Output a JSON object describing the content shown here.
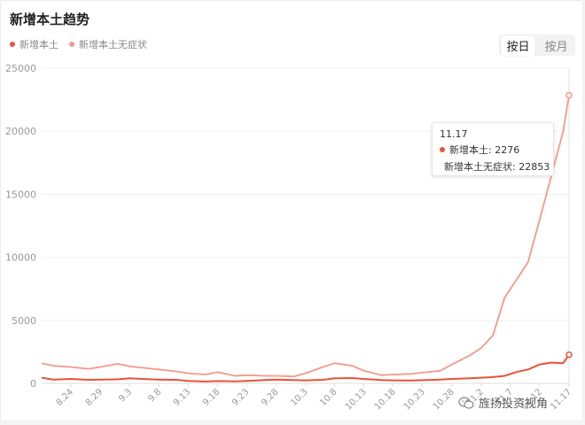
{
  "title": "新增本土趋势",
  "legend": [
    {
      "label": "新增本土",
      "color": "#e8533a"
    },
    {
      "label": "新增本土无症状",
      "color": "#f4998a"
    }
  ],
  "toggle": {
    "by_day": "按日",
    "by_month": "按月",
    "active": "by_day"
  },
  "tooltip": {
    "date": "11.17",
    "rows": [
      {
        "label": "新增本土: 2276",
        "color": "#e8533a"
      },
      {
        "label": "新增本土无症状: 22853",
        "color": "#f4998a"
      }
    ]
  },
  "watermark": {
    "text": "旌扬投资视角",
    "icon": "wechat-icon"
  },
  "chart_data": {
    "type": "line",
    "x_tick_labels": [
      "8.24",
      "8.29",
      "9.3",
      "9.8",
      "9.13",
      "9.18",
      "9.23",
      "9.28",
      "10.3",
      "10.8",
      "10.13",
      "10.18",
      "10.23",
      "10.28",
      "11.2",
      "11.7",
      "11.12",
      "11.17"
    ],
    "ylim": [
      0,
      25000
    ],
    "y_ticks": [
      0,
      5000,
      10000,
      15000,
      20000,
      25000
    ],
    "grid": true,
    "legend_position": "top-left",
    "series": [
      {
        "name": "新增本土",
        "color": "#e8533a",
        "x": [
          "8.19",
          "8.21",
          "8.24",
          "8.27",
          "8.29",
          "9.1",
          "9.3",
          "9.6",
          "9.8",
          "9.11",
          "9.13",
          "9.16",
          "9.18",
          "9.21",
          "9.23",
          "9.26",
          "9.28",
          "10.1",
          "10.3",
          "10.6",
          "10.8",
          "10.11",
          "10.13",
          "10.16",
          "10.18",
          "10.21",
          "10.23",
          "10.26",
          "10.28",
          "10.31",
          "11.2",
          "11.4",
          "11.6",
          "11.8",
          "11.10",
          "11.12",
          "11.14",
          "11.16",
          "11.17"
        ],
        "values": [
          450,
          300,
          350,
          280,
          300,
          320,
          400,
          330,
          300,
          280,
          200,
          150,
          180,
          160,
          200,
          260,
          300,
          260,
          240,
          280,
          400,
          420,
          350,
          260,
          240,
          230,
          250,
          300,
          350,
          400,
          450,
          500,
          600,
          900,
          1100,
          1500,
          1650,
          1600,
          2276
        ]
      },
      {
        "name": "新增本土无症状",
        "color": "#f4998a",
        "x": [
          "8.19",
          "8.21",
          "8.24",
          "8.27",
          "8.29",
          "9.1",
          "9.3",
          "9.6",
          "9.8",
          "9.11",
          "9.13",
          "9.16",
          "9.18",
          "9.21",
          "9.23",
          "9.26",
          "9.28",
          "10.1",
          "10.3",
          "10.6",
          "10.8",
          "10.11",
          "10.13",
          "10.16",
          "10.18",
          "10.21",
          "10.23",
          "10.26",
          "10.28",
          "10.31",
          "11.2",
          "11.4",
          "11.6",
          "11.8",
          "11.10",
          "11.12",
          "11.14",
          "11.16",
          "11.17"
        ],
        "values": [
          1600,
          1400,
          1300,
          1150,
          1300,
          1550,
          1350,
          1200,
          1100,
          950,
          800,
          700,
          900,
          600,
          650,
          600,
          600,
          550,
          800,
          1300,
          1600,
          1400,
          1000,
          650,
          700,
          750,
          850,
          1000,
          1500,
          2200,
          2800,
          3800,
          6800,
          8200,
          9600,
          13000,
          16500,
          20000,
          22853
        ]
      }
    ]
  }
}
